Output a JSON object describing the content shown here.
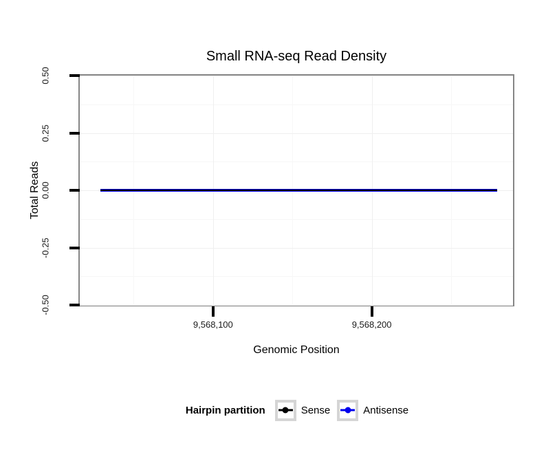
{
  "figure": {
    "title": "Small RNA-seq Read Density",
    "x_axis_label": "Genomic Position",
    "y_axis_label": "Total Reads",
    "legend_title": "Hairpin partition",
    "panel_border_color": "#868686",
    "grid_major_color": "#efefef",
    "grid_minor_color": "#f7f7f7",
    "tick_color": "#000000"
  },
  "chart_data": {
    "type": "line",
    "title": "Small RNA-seq Read Density",
    "xlabel": "Genomic Position",
    "ylabel": "Total Reads",
    "xlim": [
      9568016,
      9568289
    ],
    "ylim": [
      -0.5,
      0.5
    ],
    "x_ticks": [
      9568100,
      9568200
    ],
    "x_tick_labels": [
      "9,568,100",
      "9,568,200"
    ],
    "x_minor_ticks": [
      9568050,
      9568150,
      9568250
    ],
    "y_ticks": [
      0.5,
      0.25,
      0,
      -0.25,
      -0.5
    ],
    "y_tick_labels": [
      "0.50",
      "0.25",
      "0.00",
      "-0.25",
      "-0.50"
    ],
    "y_minor_ticks": [
      0.375,
      0.125,
      -0.125,
      -0.375
    ],
    "grid": "major and minor, very light gray, on white panel",
    "legend_position": "bottom",
    "legend": {
      "title": "Hairpin partition",
      "entries": [
        {
          "label": "Sense",
          "color": "#000000"
        },
        {
          "label": "Antisense",
          "color": "#0000EE"
        }
      ]
    },
    "series": [
      {
        "name": "Sense",
        "color": "#000000",
        "x": [
          9568029,
          9568279
        ],
        "y": [
          0,
          0
        ]
      },
      {
        "name": "Antisense",
        "color": "#0000EE",
        "x": [
          9568029,
          9568279
        ],
        "y": [
          0,
          0
        ]
      }
    ]
  }
}
